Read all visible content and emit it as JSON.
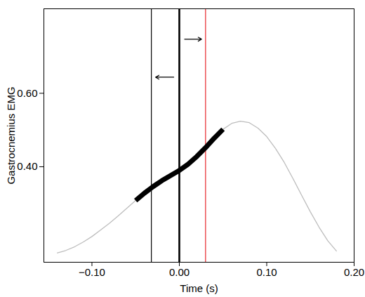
{
  "chart_data": {
    "type": "line",
    "x_label": "Time (s)",
    "y_label": "Gastrocnemius EMG",
    "xlim": [
      -0.155,
      0.2
    ],
    "xticks": [
      -0.1,
      0,
      0.1,
      0.2
    ],
    "ylim": [
      0.14,
      0.83
    ],
    "yticks": [
      0.4,
      0.6
    ],
    "grid": false,
    "series": [
      {
        "color": "#bdbdbd",
        "line_style": "thin",
        "x": [
          -0.14,
          -0.13,
          -0.12,
          -0.11,
          -0.1,
          -0.09,
          -0.08,
          -0.07,
          -0.06,
          -0.05,
          -0.04,
          -0.03,
          -0.02,
          -0.01,
          0,
          0.01,
          0.02,
          0.03,
          0.04,
          0.05,
          0.06,
          0.07,
          0.08,
          0.09,
          0.1,
          0.11,
          0.12,
          0.13,
          0.14,
          0.15,
          0.16,
          0.17,
          0.18
        ],
        "values": [
          0.165,
          0.172,
          0.182,
          0.195,
          0.21,
          0.228,
          0.246,
          0.266,
          0.287,
          0.308,
          0.328,
          0.346,
          0.362,
          0.376,
          0.39,
          0.407,
          0.428,
          0.452,
          0.478,
          0.502,
          0.518,
          0.524,
          0.52,
          0.505,
          0.482,
          0.45,
          0.412,
          0.368,
          0.322,
          0.277,
          0.235,
          0.198,
          0.17
        ]
      },
      {
        "color": "#000000",
        "line_style": "thick",
        "x": [
          -0.05,
          -0.04,
          -0.03,
          -0.02,
          -0.01,
          0,
          0.01,
          0.02,
          0.03,
          0.04,
          0.05
        ],
        "values": [
          0.308,
          0.328,
          0.346,
          0.362,
          0.376,
          0.39,
          0.407,
          0.428,
          0.452,
          0.478,
          0.502
        ]
      }
    ],
    "vertical_lines": [
      {
        "x": -0.032,
        "color": "#000000",
        "line_style": "thin"
      },
      {
        "x": 0,
        "color": "#000000",
        "line_style": "thick"
      },
      {
        "x": 0.03,
        "color": "#e8262a",
        "line_style": "thin"
      }
    ],
    "arrows": [
      {
        "from": 0,
        "to": -0.032
      },
      {
        "from": 0,
        "to": 0.03
      }
    ]
  }
}
